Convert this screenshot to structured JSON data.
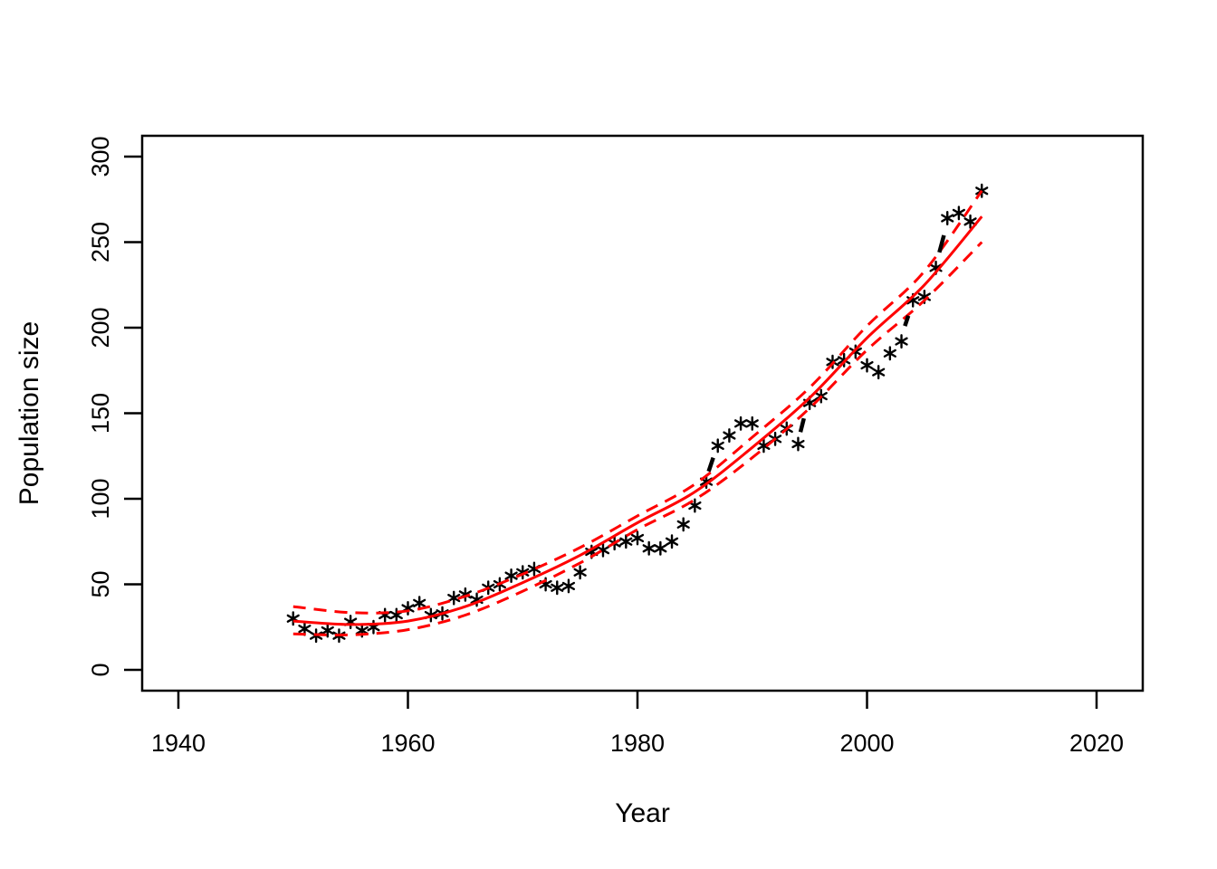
{
  "page": {
    "background": "#FFFFFF"
  },
  "chart_data": {
    "type": "scatter",
    "title": "",
    "xlabel": "Year",
    "ylabel": "Population size",
    "x_ticks": [
      1940,
      1960,
      1980,
      2000,
      2020
    ],
    "y_ticks": [
      0,
      50,
      100,
      150,
      200,
      250,
      300
    ],
    "xlim": [
      1936.8,
      2023.2
    ],
    "ylim": [
      -12,
      312
    ],
    "grid": false,
    "legend": "none",
    "point_style": {
      "symbol": "asterisk",
      "color": "#000000"
    },
    "fit_style": {
      "color": "#FF0000",
      "solid": "fitted mean",
      "dashed": "confidence band"
    },
    "observed": {
      "name": "observed population size",
      "years": [
        1950,
        1951,
        1952,
        1953,
        1954,
        1955,
        1956,
        1957,
        1958,
        1959,
        1960,
        1961,
        1962,
        1963,
        1964,
        1965,
        1966,
        1967,
        1968,
        1969,
        1970,
        1971,
        1972,
        1973,
        1974,
        1975,
        1976,
        1977,
        1978,
        1979,
        1980,
        1981,
        1982,
        1983,
        1984,
        1985,
        1986,
        1987,
        1988,
        1989,
        1990,
        1991,
        1992,
        1993,
        1994,
        1995,
        1996,
        1997,
        1998,
        1999,
        2000,
        2001,
        2002,
        2003,
        2004,
        2005,
        2006,
        2007,
        2008,
        2009,
        2010
      ],
      "values": [
        30,
        24,
        20,
        23,
        20,
        28,
        23,
        25,
        32,
        32,
        36,
        39,
        32,
        33,
        42,
        44,
        41,
        48,
        50,
        55,
        57,
        59,
        50,
        48,
        49,
        57,
        69,
        70,
        74,
        75,
        77,
        71,
        71,
        75,
        85,
        96,
        110,
        131,
        137,
        144,
        144,
        131,
        135,
        141,
        132,
        156,
        160,
        180,
        181,
        186,
        178,
        174,
        185,
        192,
        216,
        218,
        235,
        264,
        267,
        262,
        280
      ]
    },
    "fitted": {
      "name": "fitted curve (red solid)",
      "years": [
        1950,
        1955,
        1960,
        1965,
        1970,
        1975,
        1980,
        1985,
        1990,
        1995,
        2000,
        2005,
        2010
      ],
      "values": [
        28.5,
        26.5,
        28.5,
        37,
        51,
        67,
        86,
        104,
        130,
        159,
        194,
        225,
        265
      ]
    },
    "ci_upper": {
      "name": "upper confidence limit (red dashed)",
      "years": [
        1950,
        1955,
        1960,
        1965,
        1970,
        1975,
        1980,
        1985,
        1990,
        1995,
        2000,
        2005,
        2010
      ],
      "values": [
        37,
        33.5,
        34.5,
        43,
        56,
        71.5,
        90,
        108.5,
        136,
        165,
        201,
        233,
        280
      ]
    },
    "ci_lower": {
      "name": "lower confidence limit (red dashed)",
      "years": [
        1950,
        1955,
        1960,
        1965,
        1970,
        1975,
        1980,
        1985,
        1990,
        1995,
        2000,
        2005,
        2010
      ],
      "values": [
        21,
        20.5,
        23.5,
        32,
        46,
        62.5,
        82,
        99.5,
        124,
        153,
        187,
        216,
        250
      ]
    },
    "black_dashed_segments": {
      "name": "black dashed curve segments (mostly hidden behind red curve)",
      "color": "#000000",
      "segments": [
        [
          1986.2,
          116,
          1986.6,
          124
        ],
        [
          1994.2,
          139,
          1994.5,
          147
        ],
        [
          2003.3,
          201,
          2003.6,
          207
        ],
        [
          2006.3,
          244,
          2006.7,
          254
        ]
      ]
    }
  }
}
